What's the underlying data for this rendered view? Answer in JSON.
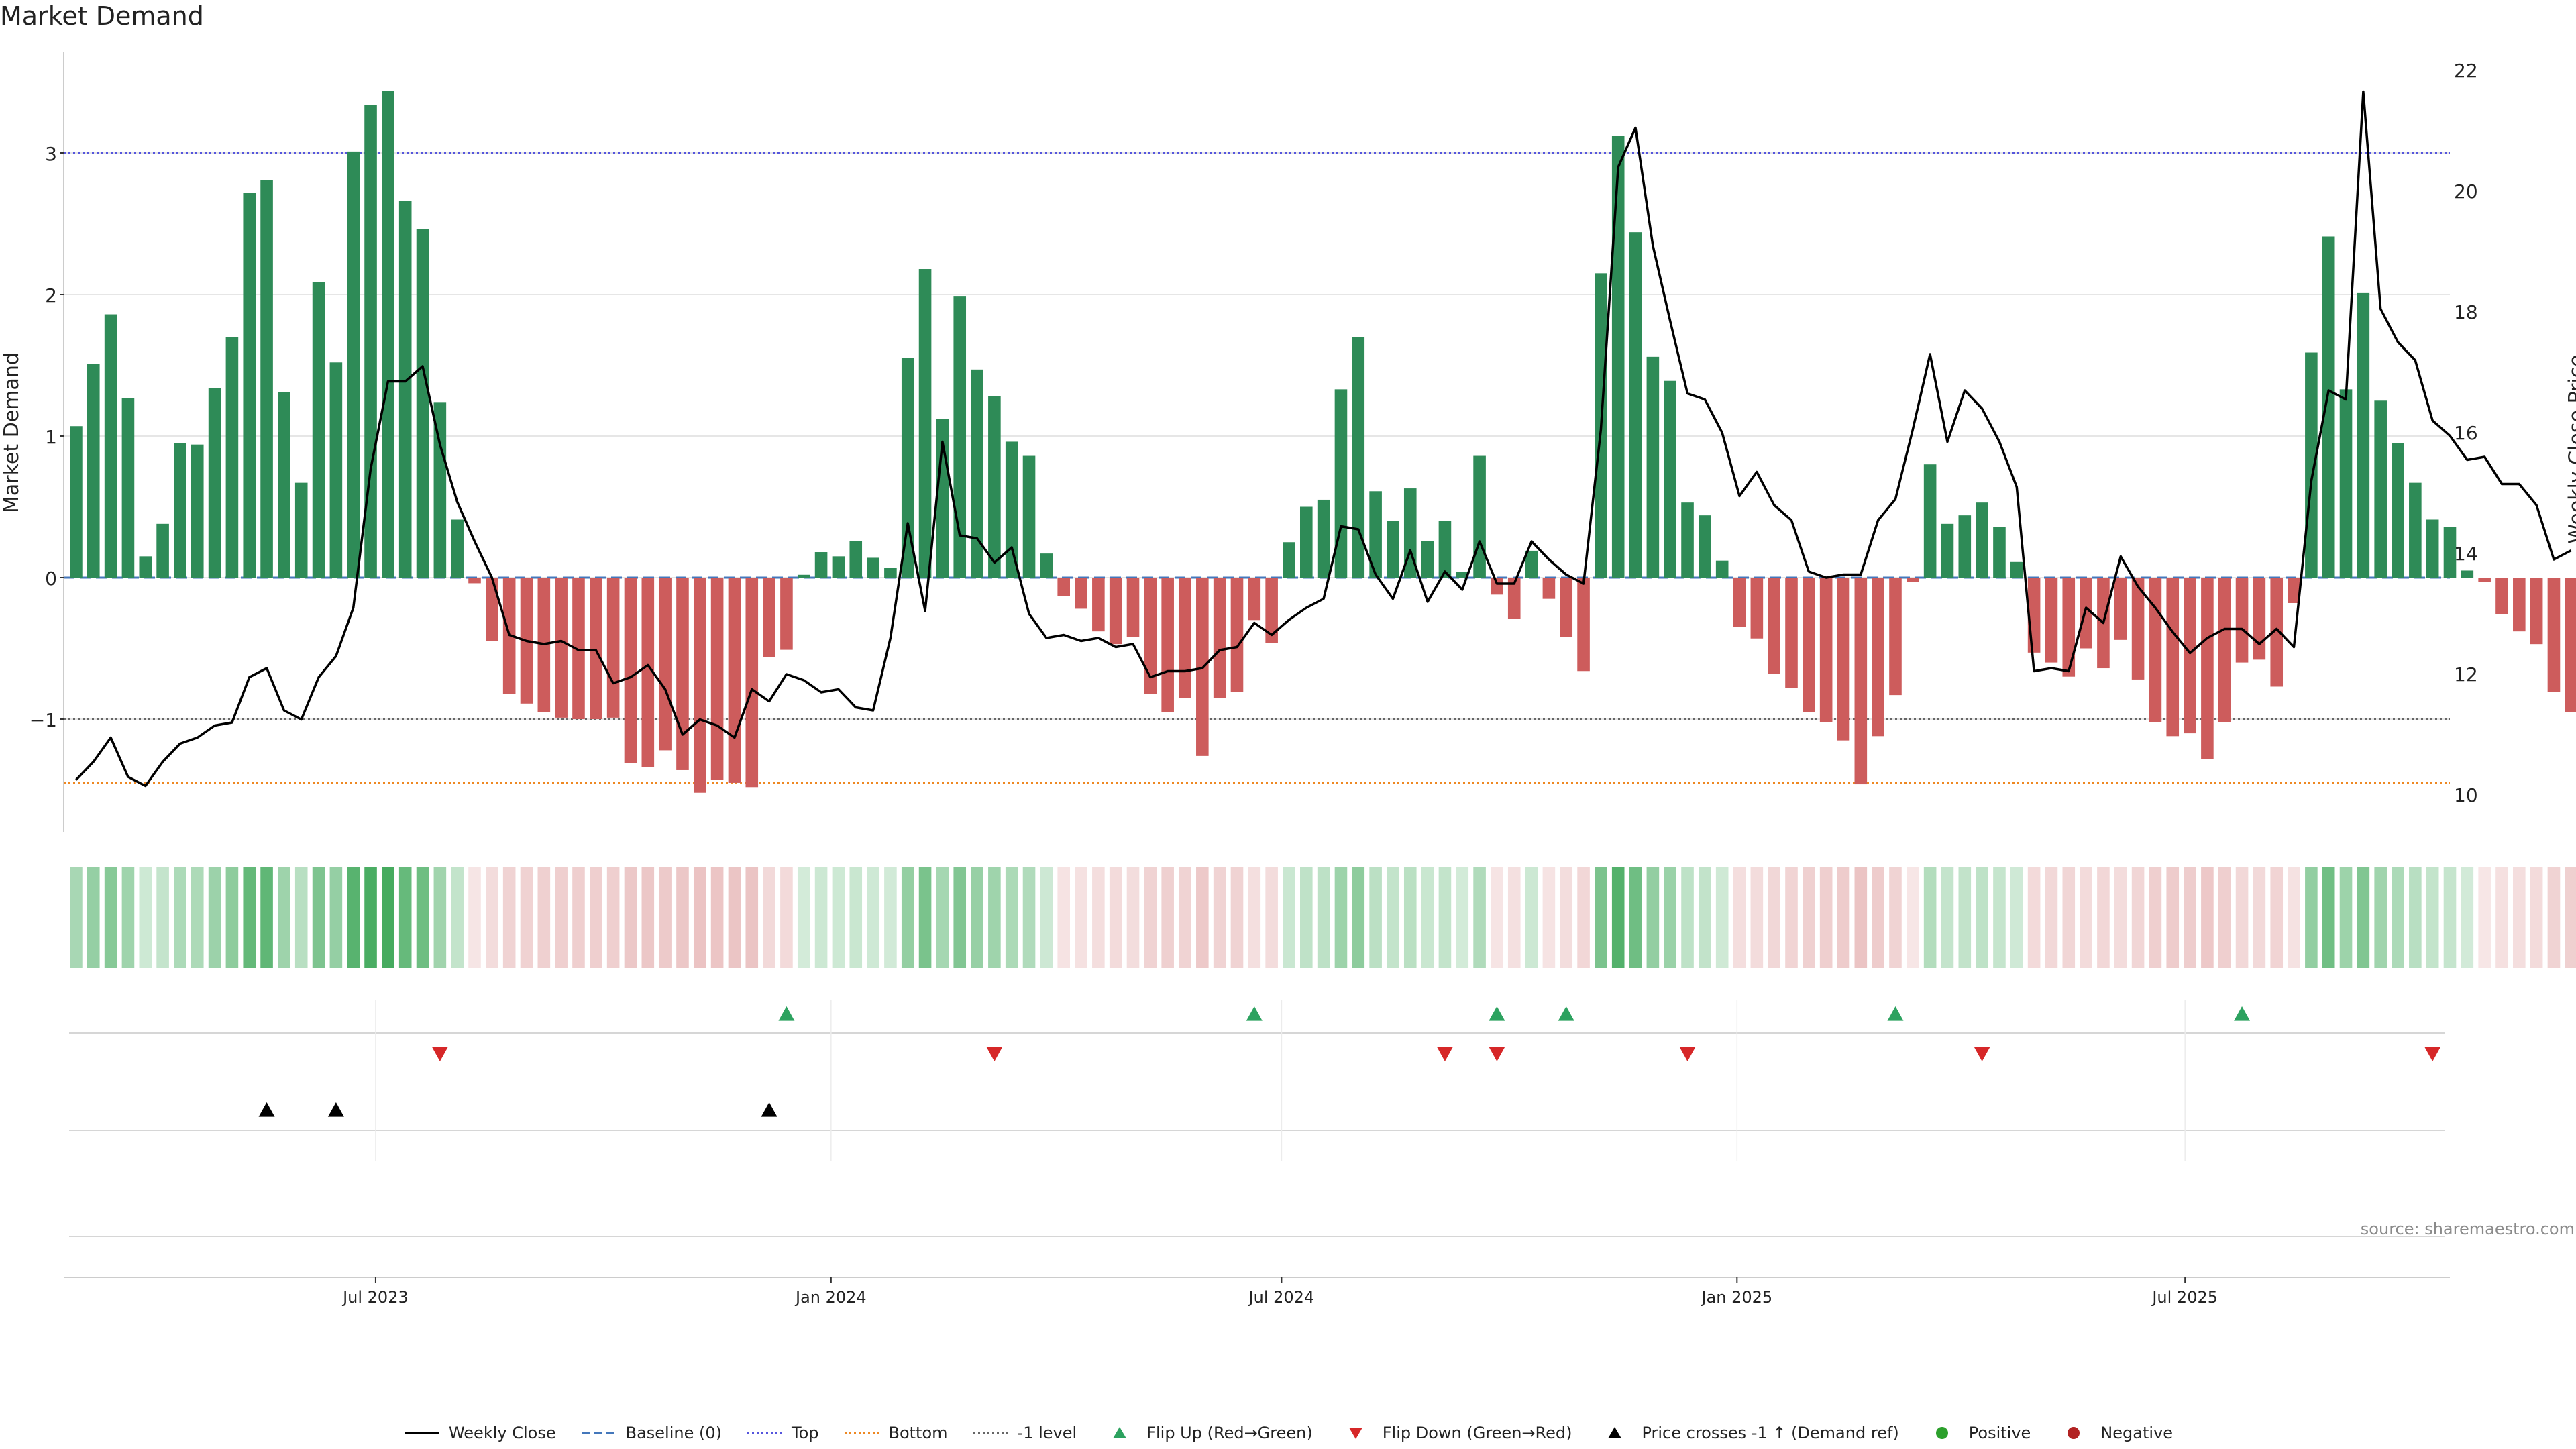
{
  "title": "Market Demand",
  "source": "source: sharemaestro.com",
  "colors": {
    "positive": "#2e8b57",
    "negative": "#cd5c5c",
    "price": "#000000",
    "baseline": "#4477bb",
    "top": "#5555dd",
    "bottom": "#ee8822",
    "minus_one": "#666666",
    "flip_up": "#2ca25f",
    "flip_down": "#d62728",
    "cross": "#000000",
    "positive_dot": "#2ca02c",
    "negative_dot": "#b22222"
  },
  "legend": [
    {
      "key": "price",
      "label": "Weekly Close",
      "style": "solid-line",
      "icon": "line-icon"
    },
    {
      "key": "baseline",
      "label": "Baseline (0)",
      "style": "dashed-line",
      "icon": "dashed-line-icon"
    },
    {
      "key": "top",
      "label": "Top",
      "style": "dotted-line",
      "icon": "dotted-line-icon"
    },
    {
      "key": "bottom",
      "label": "Bottom",
      "style": "dotted-line",
      "icon": "dotted-line-icon"
    },
    {
      "key": "minus_one",
      "label": "-1 level",
      "style": "dotted-line",
      "icon": "dotted-line-icon"
    },
    {
      "key": "flip_up",
      "label": "Flip Up (Red→Green)",
      "style": "triangle-up",
      "icon": "triangle-up-icon"
    },
    {
      "key": "flip_down",
      "label": "Flip Down (Green→Red)",
      "style": "triangle-down",
      "icon": "triangle-down-icon"
    },
    {
      "key": "cross",
      "label": "Price crosses -1 ↑ (Demand ref)",
      "style": "triangle-up",
      "icon": "triangle-up-icon"
    },
    {
      "key": "positive_dot",
      "label": "Positive",
      "style": "dot",
      "icon": "dot-icon"
    },
    {
      "key": "negative_dot",
      "label": "Negative",
      "style": "dot",
      "icon": "dot-icon"
    }
  ],
  "chart_data": {
    "type": "bar",
    "title": "Market Demand",
    "ylabel": "Market Demand",
    "y2label": "Weekly Close Price",
    "ylim": [
      -1.8,
      3.75
    ],
    "y2lim": [
      9.6,
      22.6
    ],
    "yticks": [
      -1,
      0,
      1,
      2,
      3
    ],
    "ytick_labels": [
      "−1",
      "0",
      "1",
      "2",
      "3"
    ],
    "y2ticks": [
      10,
      12,
      14,
      16,
      18,
      20,
      22
    ],
    "y2tick_labels": [
      "10",
      "12",
      "14",
      "16",
      "18",
      "20",
      "22"
    ],
    "reference_lines": {
      "baseline": 0,
      "top": 3.0,
      "bottom": -1.45,
      "minus_one": -1.0
    },
    "x_start": "2023-03-02",
    "x_step_days": 7,
    "x_range": [
      "2023-02-25",
      "2025-10-16"
    ],
    "xticks": [
      {
        "date": "2023-07-01",
        "label": "Jul 2023"
      },
      {
        "date": "2024-01-01",
        "label": "Jan 2024"
      },
      {
        "date": "2024-07-01",
        "label": "Jul 2024"
      },
      {
        "date": "2025-01-01",
        "label": "Jan 2025"
      },
      {
        "date": "2025-07-01",
        "label": "Jul 2025"
      }
    ],
    "series": [
      {
        "name": "Market Demand",
        "values": [
          1.07,
          1.51,
          1.86,
          1.27,
          0.15,
          0.38,
          0.95,
          0.94,
          1.34,
          1.7,
          2.72,
          2.81,
          1.31,
          0.67,
          2.09,
          1.52,
          3.01,
          3.34,
          3.44,
          2.66,
          2.46,
          1.24,
          0.41,
          -0.04,
          -0.45,
          -0.82,
          -0.89,
          -0.95,
          -0.99,
          -1.0,
          -1.0,
          -0.99,
          -1.31,
          -1.34,
          -1.22,
          -1.36,
          -1.52,
          -1.43,
          -1.45,
          -1.48,
          -0.56,
          -0.51,
          0.02,
          0.18,
          0.15,
          0.26,
          0.14,
          0.07,
          1.55,
          2.18,
          1.12,
          1.99,
          1.47,
          1.28,
          0.96,
          0.86,
          0.17,
          -0.13,
          -0.22,
          -0.38,
          -0.47,
          -0.42,
          -0.82,
          -0.95,
          -0.85,
          -1.26,
          -0.85,
          -0.81,
          -0.3,
          -0.46,
          0.25,
          0.5,
          0.55,
          1.33,
          1.7,
          0.61,
          0.4,
          0.63,
          0.26,
          0.4,
          0.04,
          0.86,
          -0.12,
          -0.29,
          0.19,
          -0.15,
          -0.42,
          -0.66,
          2.15,
          3.12,
          2.44,
          1.56,
          1.39,
          0.53,
          0.44,
          0.12,
          -0.35,
          -0.43,
          -0.68,
          -0.78,
          -0.95,
          -1.02,
          -1.15,
          -1.46,
          -1.12,
          -0.83,
          -0.03,
          0.8,
          0.38,
          0.44,
          0.53,
          0.36,
          0.11,
          -0.53,
          -0.6,
          -0.7,
          -0.5,
          -0.64,
          -0.44,
          -0.72,
          -1.02,
          -1.12,
          -1.1,
          -1.28,
          -1.02,
          -0.6,
          -0.58,
          -0.77,
          -0.18,
          1.59,
          2.41,
          1.33,
          2.01,
          1.25,
          0.95,
          0.67,
          0.41,
          0.36,
          0.05,
          -0.03,
          -0.26,
          -0.38,
          -0.47,
          -0.81,
          -0.95
        ]
      },
      {
        "name": "Weekly Close",
        "axis": "right",
        "values": [
          10.25,
          10.55,
          10.95,
          10.3,
          10.15,
          10.55,
          10.85,
          10.95,
          11.15,
          11.2,
          11.95,
          12.1,
          11.4,
          11.25,
          11.95,
          12.3,
          13.1,
          15.4,
          16.85,
          16.85,
          17.1,
          15.8,
          14.85,
          14.2,
          13.6,
          12.65,
          12.55,
          12.5,
          12.55,
          12.4,
          12.4,
          11.85,
          11.95,
          12.15,
          11.75,
          11.0,
          11.25,
          11.15,
          10.95,
          11.75,
          11.55,
          12.0,
          11.9,
          11.7,
          11.75,
          11.45,
          11.4,
          12.6,
          14.5,
          13.05,
          15.85,
          14.3,
          14.25,
          13.85,
          14.1,
          13.0,
          12.6,
          12.65,
          12.55,
          12.6,
          12.45,
          12.5,
          11.95,
          12.05,
          12.05,
          12.1,
          12.4,
          12.45,
          12.85,
          12.65,
          12.9,
          13.1,
          13.25,
          14.45,
          14.4,
          13.65,
          13.25,
          14.05,
          13.2,
          13.7,
          13.4,
          14.2,
          13.5,
          13.5,
          14.2,
          13.9,
          13.65,
          13.5,
          16.05,
          20.4,
          21.05,
          19.1,
          17.85,
          16.65,
          16.55,
          16.0,
          14.95,
          15.35,
          14.8,
          14.55,
          13.7,
          13.6,
          13.65,
          13.65,
          14.55,
          14.9,
          16.05,
          17.3,
          15.85,
          16.7,
          16.4,
          15.85,
          15.1,
          12.05,
          12.1,
          12.05,
          13.1,
          12.85,
          13.95,
          13.45,
          13.1,
          12.7,
          12.35,
          12.6,
          12.75,
          12.75,
          12.5,
          12.75,
          12.45,
          15.2,
          16.7,
          16.55,
          21.65,
          18.05,
          17.5,
          17.2,
          16.2,
          15.95,
          15.55,
          15.6,
          15.15,
          15.15,
          14.8,
          13.9,
          14.05
        ]
      }
    ],
    "flip_up_dates": [
      "2023-12-14",
      "2024-06-20",
      "2024-09-26",
      "2024-10-24",
      "2025-03-06",
      "2025-07-24"
    ],
    "flip_down_dates": [
      "2023-07-27",
      "2024-03-07",
      "2024-09-05",
      "2024-09-26",
      "2024-12-12",
      "2025-04-10",
      "2025-10-09"
    ],
    "price_cross_dates": [
      "2023-05-18",
      "2023-06-15",
      "2023-12-07"
    ]
  }
}
